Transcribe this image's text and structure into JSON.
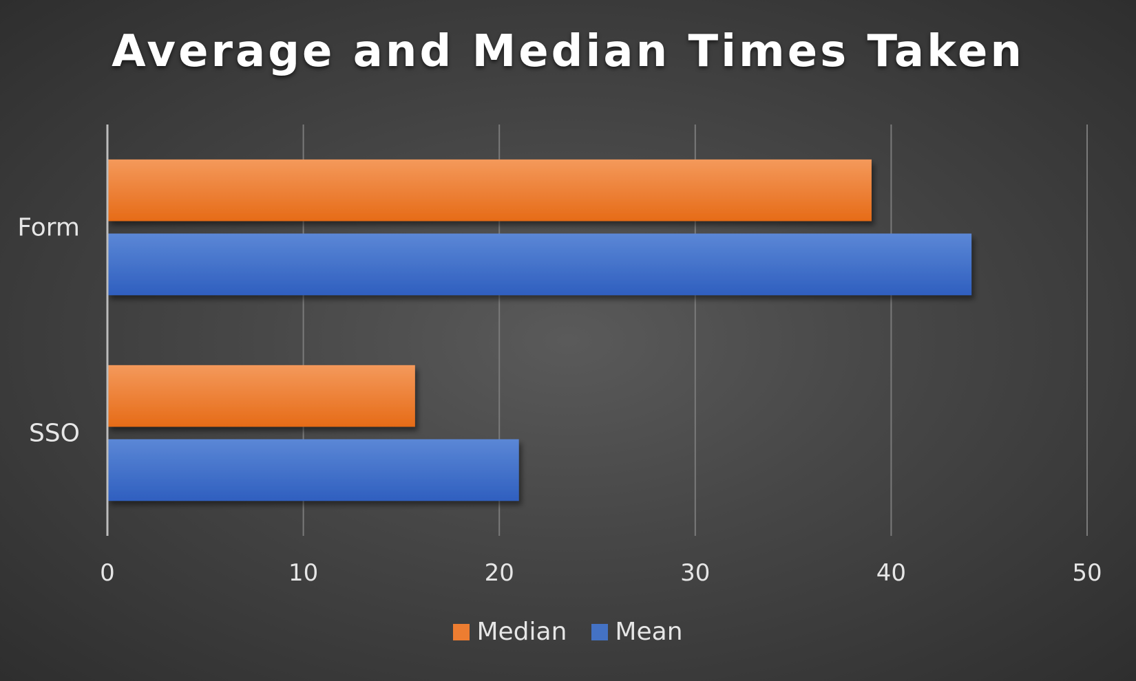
{
  "chart_data": {
    "type": "bar",
    "orientation": "horizontal",
    "title": "Average and Median Times Taken",
    "xlabel": "",
    "ylabel": "",
    "categories": [
      "Form",
      "SSO"
    ],
    "series": [
      {
        "name": "Median",
        "values": [
          39,
          15.7
        ],
        "color": "#ed7d31"
      },
      {
        "name": "Mean",
        "values": [
          44.1,
          21
        ],
        "color": "#4472c4"
      }
    ],
    "xlim": [
      0,
      50
    ],
    "xticks": [
      0,
      10,
      20,
      30,
      40,
      50
    ],
    "grid": true,
    "legend_position": "bottom"
  }
}
